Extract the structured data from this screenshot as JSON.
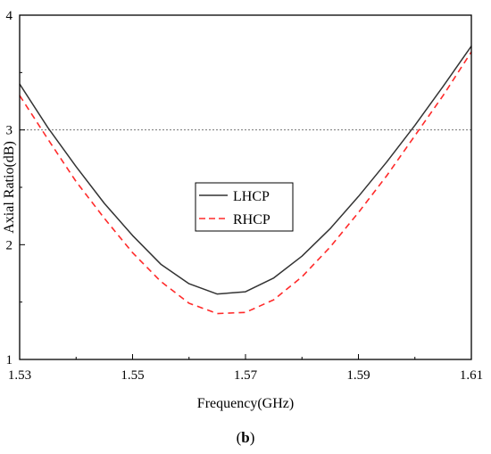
{
  "chart_data": {
    "type": "line",
    "xlabel": "Frequency(GHz)",
    "ylabel": "Axial Ratio(dB)",
    "xlim": [
      1.53,
      1.61
    ],
    "ylim": [
      1,
      4
    ],
    "x_ticks": [
      "1.53",
      "1.55",
      "1.57",
      "1.59",
      "1.61"
    ],
    "y_ticks": [
      "1",
      "2",
      "3",
      "4"
    ],
    "reference_line": {
      "y": 3,
      "style": "dotted",
      "color": "#777777"
    },
    "legend_placement": "center-left",
    "series": [
      {
        "name": "LHCP",
        "color": "#333333",
        "dash": "solid",
        "x": [
          1.53,
          1.535,
          1.54,
          1.545,
          1.55,
          1.555,
          1.56,
          1.565,
          1.57,
          1.575,
          1.58,
          1.585,
          1.59,
          1.595,
          1.6,
          1.605,
          1.61
        ],
        "y": [
          3.4,
          3.02,
          2.68,
          2.36,
          2.08,
          1.83,
          1.66,
          1.57,
          1.59,
          1.71,
          1.9,
          2.14,
          2.42,
          2.72,
          3.04,
          3.38,
          3.73
        ]
      },
      {
        "name": "RHCP",
        "color": "#ff2a2a",
        "dash": "dashed",
        "x": [
          1.53,
          1.535,
          1.54,
          1.545,
          1.55,
          1.555,
          1.56,
          1.565,
          1.57,
          1.575,
          1.58,
          1.585,
          1.59,
          1.595,
          1.6,
          1.605,
          1.61
        ],
        "y": [
          3.3,
          2.92,
          2.55,
          2.23,
          1.93,
          1.68,
          1.49,
          1.4,
          1.41,
          1.52,
          1.72,
          1.98,
          2.28,
          2.6,
          2.95,
          3.3,
          3.68
        ]
      }
    ]
  },
  "caption": {
    "open": "(",
    "letter": "b",
    "close": ")"
  }
}
